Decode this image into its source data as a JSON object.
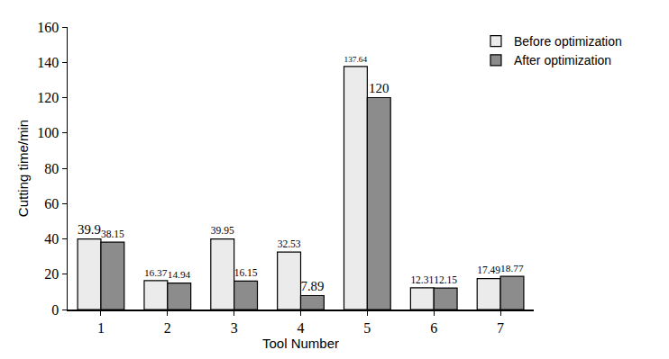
{
  "chart_data": {
    "type": "bar",
    "x_label": "Tool Number",
    "y_label": "Cutting time/min",
    "categories": [
      "1",
      "2",
      "3",
      "4",
      "5",
      "6",
      "7"
    ],
    "series": [
      {
        "name": "Before optimization",
        "color": "#ebebeb",
        "values": [
          39.9,
          16.37,
          39.95,
          32.53,
          137.64,
          12.31,
          17.49
        ]
      },
      {
        "name": "After optimization",
        "color": "#8c8c8c",
        "values": [
          38.15,
          14.94,
          16.15,
          7.89,
          120,
          12.15,
          18.77
        ]
      }
    ],
    "ylim": [
      0,
      160
    ],
    "yticks": [
      0,
      20,
      40,
      60,
      80,
      100,
      120,
      140,
      160
    ],
    "grid": false,
    "legend": "top right",
    "data_labels": true
  }
}
